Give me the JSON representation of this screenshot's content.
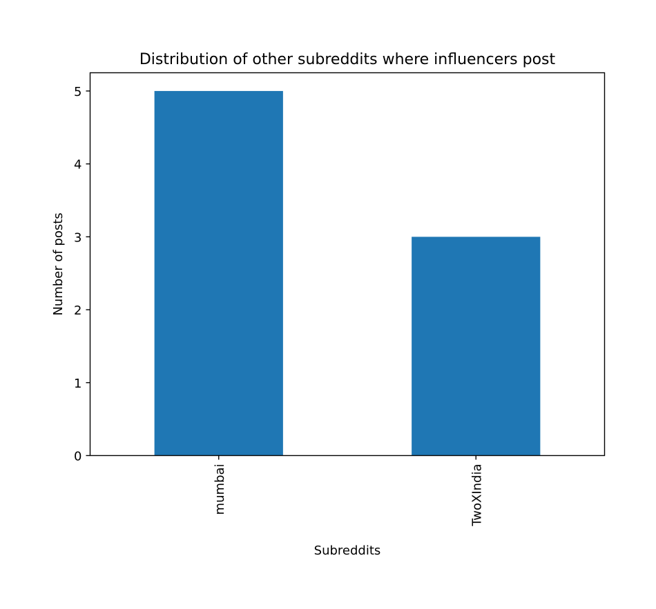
{
  "chart_data": {
    "type": "bar",
    "title": "Distribution of other subreddits where influencers post",
    "xlabel": "Subreddits",
    "ylabel": "Number of posts",
    "categories": [
      "mumbai",
      "TwoXIndia"
    ],
    "values": [
      5,
      3
    ],
    "ylim": [
      0,
      5.25
    ],
    "yticks": [
      0,
      1,
      2,
      3,
      4,
      5
    ],
    "xtick_rotation": "vertical",
    "grid": false,
    "legend": "none",
    "bar_color": "#1f77b4"
  }
}
